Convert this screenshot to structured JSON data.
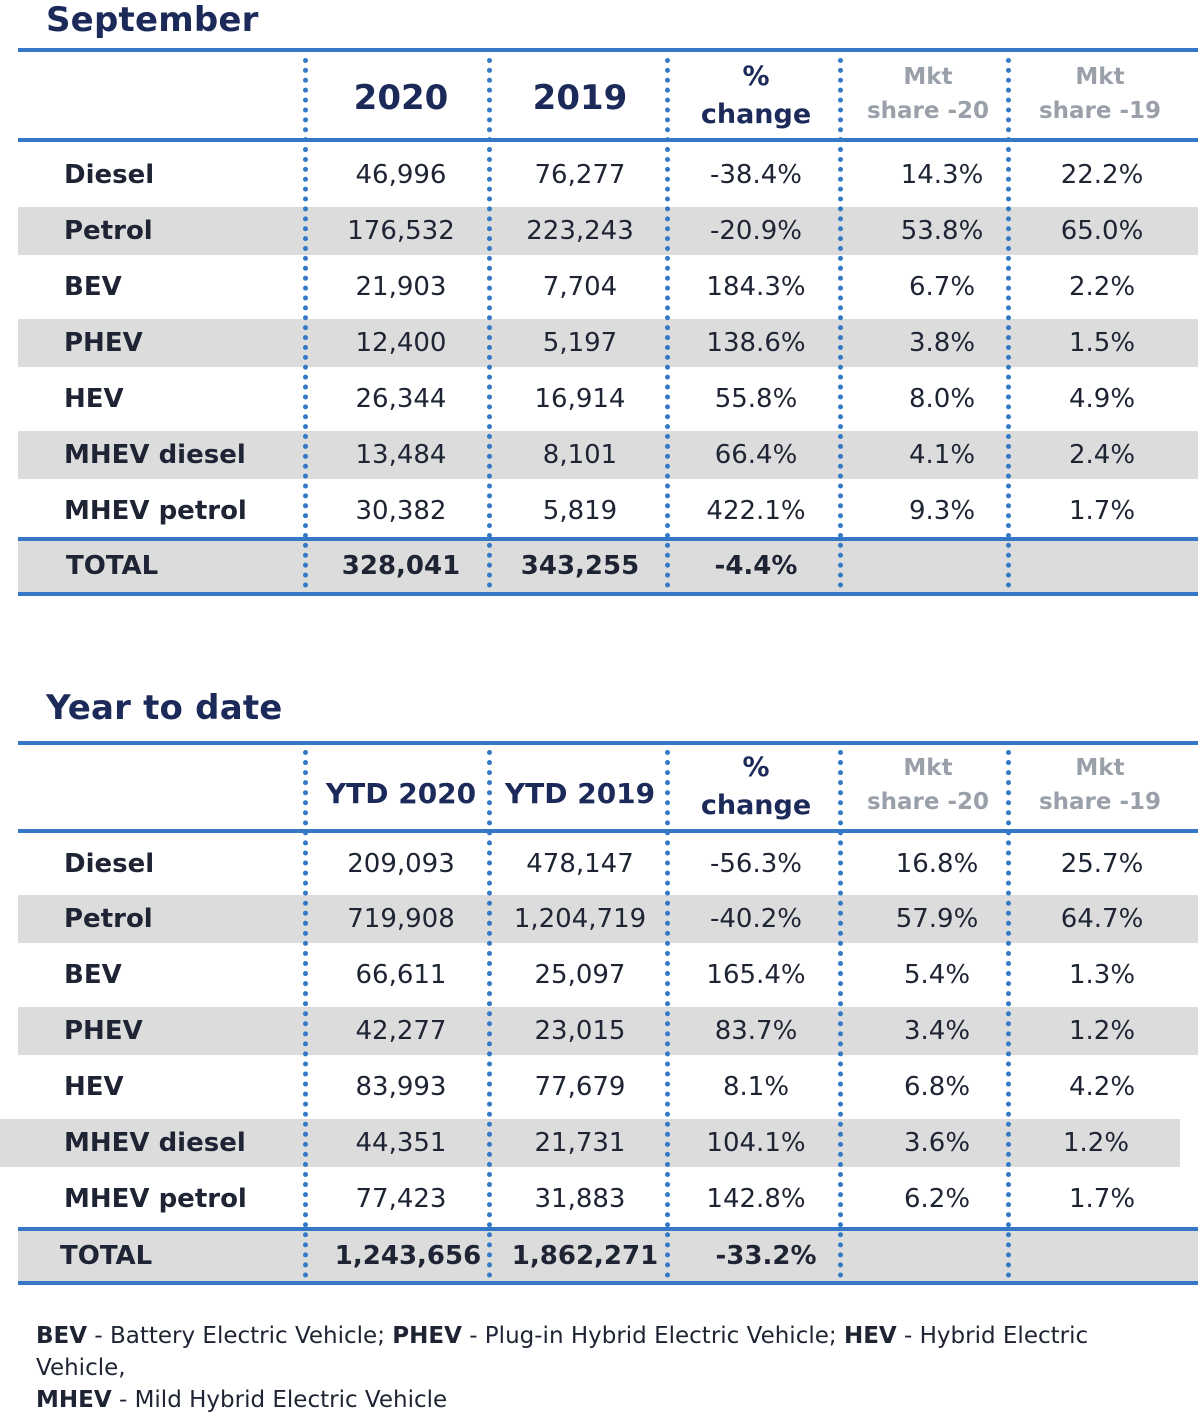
{
  "tables": [
    {
      "title": "September",
      "headers": {
        "y1": "2020",
        "y2": "2019",
        "pct_line1": "%",
        "pct_line2": "change",
        "mkt1_line1": "Mkt",
        "mkt1_line2": "share -20",
        "mkt2_line1": "Mkt",
        "mkt2_line2": "share -19"
      },
      "rows": [
        {
          "label": "Diesel",
          "v1": "46,996",
          "v2": "76,277",
          "pct": "-38.4%",
          "m1": "14.3%",
          "m2": "22.2%"
        },
        {
          "label": "Petrol",
          "v1": "176,532",
          "v2": "223,243",
          "pct": "-20.9%",
          "m1": "53.8%",
          "m2": "65.0%"
        },
        {
          "label": "BEV",
          "v1": "21,903",
          "v2": "7,704",
          "pct": "184.3%",
          "m1": "6.7%",
          "m2": "2.2%"
        },
        {
          "label": "PHEV",
          "v1": "12,400",
          "v2": "5,197",
          "pct": "138.6%",
          "m1": "3.8%",
          "m2": "1.5%"
        },
        {
          "label": "HEV",
          "v1": "26,344",
          "v2": "16,914",
          "pct": "55.8%",
          "m1": "8.0%",
          "m2": "4.9%"
        },
        {
          "label": "MHEV diesel",
          "v1": "13,484",
          "v2": "8,101",
          "pct": "66.4%",
          "m1": "4.1%",
          "m2": "2.4%"
        },
        {
          "label": "MHEV petrol",
          "v1": "30,382",
          "v2": "5,819",
          "pct": "422.1%",
          "m1": "9.3%",
          "m2": "1.7%"
        }
      ],
      "total": {
        "label": "TOTAL",
        "v1": "328,041",
        "v2": "343,255",
        "pct": "-4.4%"
      }
    },
    {
      "title": "Year to date",
      "headers": {
        "y1": "YTD 2020",
        "y2": "YTD 2019",
        "pct_line1": "%",
        "pct_line2": "change",
        "mkt1_line1": "Mkt",
        "mkt1_line2": "share -20",
        "mkt2_line1": "Mkt",
        "mkt2_line2": "share -19"
      },
      "rows": [
        {
          "label": "Diesel",
          "v1": "209,093",
          "v2": "478,147",
          "pct": "-56.3%",
          "m1": "16.8%",
          "m2": "25.7%"
        },
        {
          "label": "Petrol",
          "v1": "719,908",
          "v2": "1,204,719",
          "pct": "-40.2%",
          "m1": "57.9%",
          "m2": "64.7%"
        },
        {
          "label": "BEV",
          "v1": "66,611",
          "v2": "25,097",
          "pct": "165.4%",
          "m1": "5.4%",
          "m2": "1.3%"
        },
        {
          "label": "PHEV",
          "v1": "42,277",
          "v2": "23,015",
          "pct": "83.7%",
          "m1": "3.4%",
          "m2": "1.2%"
        },
        {
          "label": "HEV",
          "v1": "83,993",
          "v2": "77,679",
          "pct": "8.1%",
          "m1": "6.8%",
          "m2": "4.2%"
        },
        {
          "label": "MHEV diesel",
          "v1": "44,351",
          "v2": "21,731",
          "pct": "104.1%",
          "m1": "3.6%",
          "m2": "1.2%"
        },
        {
          "label": "MHEV petrol",
          "v1": "77,423",
          "v2": "31,883",
          "pct": "142.8%",
          "m1": "6.2%",
          "m2": "1.7%"
        }
      ],
      "total": {
        "label": "TOTAL",
        "v1": "1,243,656",
        "v2": "1,862,271",
        "pct": "-33.2%"
      }
    }
  ],
  "footnote": {
    "bev_abbr": "BEV",
    "bev_def": " - Battery Electric Vehicle; ",
    "phev_abbr": "PHEV",
    "phev_def": " - Plug-in Hybrid Electric Vehicle; ",
    "hev_abbr": "HEV",
    "hev_def": " - Hybrid Electric Vehicle,",
    "mhev_abbr": "MHEV",
    "mhev_def": " - Mild Hybrid Electric Vehicle"
  },
  "colors": {
    "accent": "#3478c6",
    "title": "#1c2a5a",
    "row_shade": "#dcdcdc",
    "muted_header": "#9aa0aa"
  }
}
